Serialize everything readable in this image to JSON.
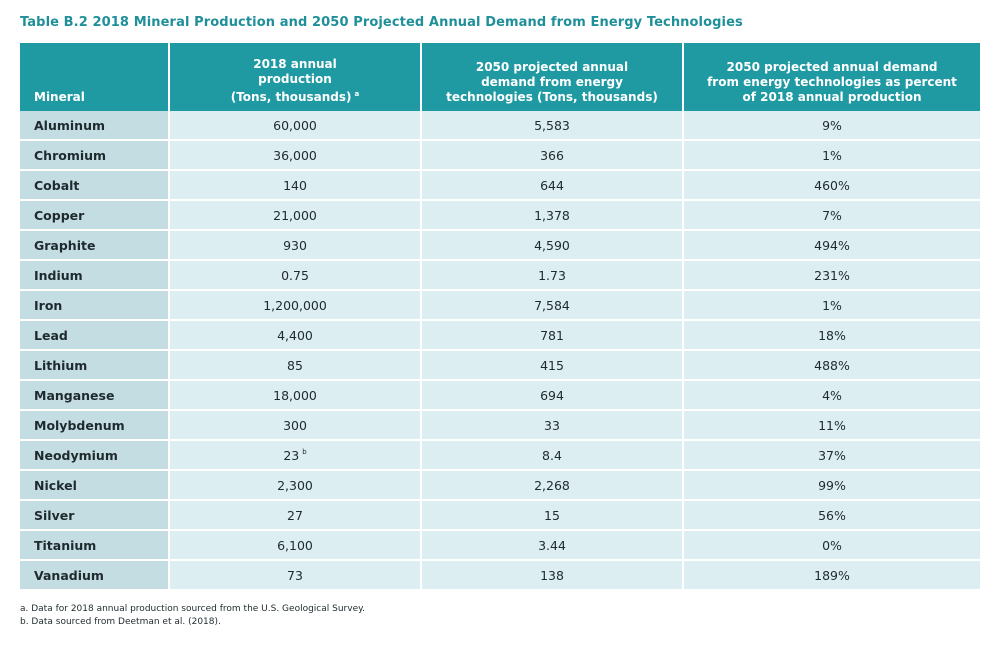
{
  "title": "Table B.2 2018 Mineral Production and 2050 Projected Annual Demand from Energy Technologies",
  "header": {
    "col0": "Mineral",
    "col1_lines": [
      "2018 annual",
      "production",
      "(Tons, thousands)"
    ],
    "col1_marker": "a",
    "col2_lines": [
      "2050 projected annual",
      "demand from energy",
      "technologies (Tons, thousands)"
    ],
    "col3_lines": [
      "2050 projected annual demand",
      "from energy technologies as  percent",
      "of 2018 annual production"
    ]
  },
  "rows": [
    {
      "mineral": "Aluminum",
      "production": "60,000",
      "marker": "",
      "demand": "5,583",
      "percent": "9%"
    },
    {
      "mineral": "Chromium",
      "production": "36,000",
      "marker": "",
      "demand": "366",
      "percent": "1%"
    },
    {
      "mineral": "Cobalt",
      "production": "140",
      "marker": "",
      "demand": "644",
      "percent": "460%"
    },
    {
      "mineral": "Copper",
      "production": "21,000",
      "marker": "",
      "demand": "1,378",
      "percent": "7%"
    },
    {
      "mineral": "Graphite",
      "production": "930",
      "marker": "",
      "demand": "4,590",
      "percent": "494%"
    },
    {
      "mineral": "Indium",
      "production": "0.75",
      "marker": "",
      "demand": "1.73",
      "percent": "231%"
    },
    {
      "mineral": "Iron",
      "production": "1,200,000",
      "marker": "",
      "demand": "7,584",
      "percent": "1%"
    },
    {
      "mineral": "Lead",
      "production": "4,400",
      "marker": "",
      "demand": "781",
      "percent": "18%"
    },
    {
      "mineral": "Lithium",
      "production": "85",
      "marker": "",
      "demand": "415",
      "percent": "488%"
    },
    {
      "mineral": "Manganese",
      "production": "18,000",
      "marker": "",
      "demand": "694",
      "percent": "4%"
    },
    {
      "mineral": "Molybdenum",
      "production": "300",
      "marker": "",
      "demand": "33",
      "percent": "11%"
    },
    {
      "mineral": "Neodymium",
      "production": "23",
      "marker": "b",
      "demand": "8.4",
      "percent": "37%"
    },
    {
      "mineral": "Nickel",
      "production": "2,300",
      "marker": "",
      "demand": "2,268",
      "percent": "99%"
    },
    {
      "mineral": "Silver",
      "production": "27",
      "marker": "",
      "demand": "15",
      "percent": "56%"
    },
    {
      "mineral": "Titanium",
      "production": "6,100",
      "marker": "",
      "demand": "3.44",
      "percent": "0%"
    },
    {
      "mineral": "Vanadium",
      "production": "73",
      "marker": "",
      "demand": "138",
      "percent": "189%"
    }
  ],
  "footnotes": [
    "a. Data for 2018 annual production sourced from the U.S. Geological Survey.",
    "b. Data sourced from Deetman et al. (2018)."
  ],
  "colors": {
    "title": "#1f8f99",
    "header_bg": "#1f9aa3",
    "mineral_cell": "#c3dde2",
    "data_cell": "#dceef1"
  }
}
